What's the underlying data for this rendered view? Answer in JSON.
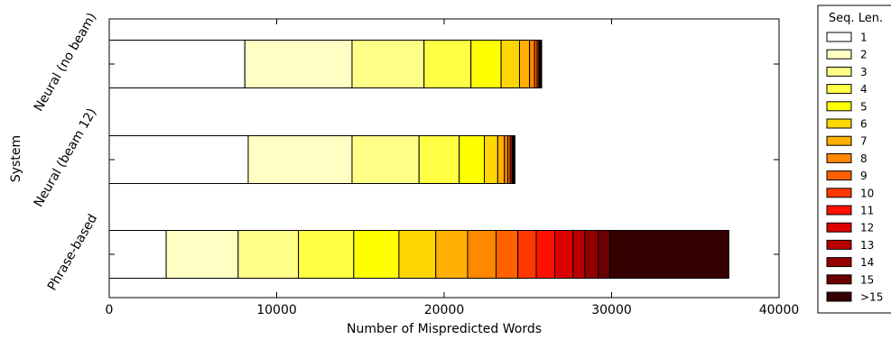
{
  "chart_data": {
    "type": "bar",
    "orientation": "horizontal",
    "stacked": true,
    "categories": [
      "Neural (no beam)",
      "Neural (beam 12)",
      "Phrase-based"
    ],
    "xlabel": "Number of Mispredicted Words",
    "ylabel": "System",
    "xlim": [
      0,
      40000
    ],
    "xticks": [
      0,
      10000,
      20000,
      30000,
      40000
    ],
    "xtick_labels": [
      "0",
      "10000",
      "20000",
      "30000",
      "40000"
    ],
    "grid": false,
    "legend": {
      "title": "Seq. Len.",
      "placement": "outside-right"
    },
    "series": [
      {
        "name": "1",
        "color": "#ffffff",
        "values": [
          8100,
          8300,
          3400
        ]
      },
      {
        "name": "2",
        "color": "#ffffc4",
        "values": [
          6400,
          6200,
          4300
        ]
      },
      {
        "name": "3",
        "color": "#ffff88",
        "values": [
          4300,
          4000,
          3600
        ]
      },
      {
        "name": "4",
        "color": "#ffff44",
        "values": [
          2800,
          2400,
          3300
        ]
      },
      {
        "name": "5",
        "color": "#ffff00",
        "values": [
          1800,
          1500,
          2700
        ]
      },
      {
        "name": "6",
        "color": "#ffd700",
        "values": [
          1100,
          800,
          2200
        ]
      },
      {
        "name": "7",
        "color": "#ffb000",
        "values": [
          600,
          400,
          1900
        ]
      },
      {
        "name": "8",
        "color": "#ff8800",
        "values": [
          300,
          200,
          1700
        ]
      },
      {
        "name": "9",
        "color": "#ff6000",
        "values": [
          150,
          150,
          1300
        ]
      },
      {
        "name": "10",
        "color": "#ff3800",
        "values": [
          100,
          100,
          1100
        ]
      },
      {
        "name": "11",
        "color": "#ff1000",
        "values": [
          50,
          50,
          1100
        ]
      },
      {
        "name": "12",
        "color": "#dd0000",
        "values": [
          30,
          30,
          1100
        ]
      },
      {
        "name": "13",
        "color": "#b80000",
        "values": [
          20,
          20,
          700
        ]
      },
      {
        "name": "14",
        "color": "#920000",
        "values": [
          15,
          15,
          800
        ]
      },
      {
        "name": "15",
        "color": "#6c0000",
        "values": [
          10,
          10,
          700
        ]
      },
      {
        "name": ">15",
        "color": "#340000",
        "values": [
          50,
          50,
          7100
        ]
      }
    ]
  }
}
